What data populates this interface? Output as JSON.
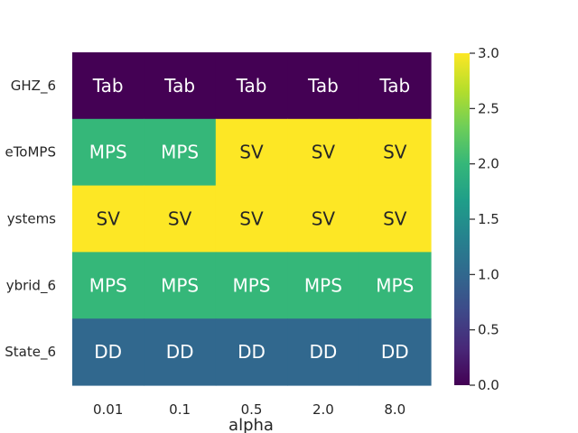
{
  "chart_data": {
    "type": "heatmap",
    "title": "",
    "xlabel": "alpha",
    "ylabel": "",
    "x_categories": [
      "0.01",
      "0.1",
      "0.5",
      "2.0",
      "8.0"
    ],
    "y_categories": [
      "GHZ_6",
      "eToMPS",
      "ystems",
      "ybrid_6",
      "State_6"
    ],
    "values": [
      [
        0,
        0,
        0,
        0,
        0
      ],
      [
        2,
        2,
        3,
        3,
        3
      ],
      [
        3,
        3,
        3,
        3,
        3
      ],
      [
        2,
        2,
        2,
        2,
        2
      ],
      [
        1,
        1,
        1,
        1,
        1
      ]
    ],
    "annotations": [
      [
        "Tab",
        "Tab",
        "Tab",
        "Tab",
        "Tab"
      ],
      [
        "MPS",
        "MPS",
        "SV",
        "SV",
        "SV"
      ],
      [
        "SV",
        "SV",
        "SV",
        "SV",
        "SV"
      ],
      [
        "MPS",
        "MPS",
        "MPS",
        "MPS",
        "MPS"
      ],
      [
        "DD",
        "DD",
        "DD",
        "DD",
        "DD"
      ]
    ],
    "colorbar": {
      "min": 0.0,
      "max": 3.0,
      "ticks": [
        "0.0",
        "0.5",
        "1.0",
        "1.5",
        "2.0",
        "2.5",
        "3.0"
      ],
      "colormap": "viridis"
    },
    "colors": {
      "0": "#440154",
      "1": "#31688e",
      "2": "#35b779",
      "3": "#fde725"
    }
  }
}
